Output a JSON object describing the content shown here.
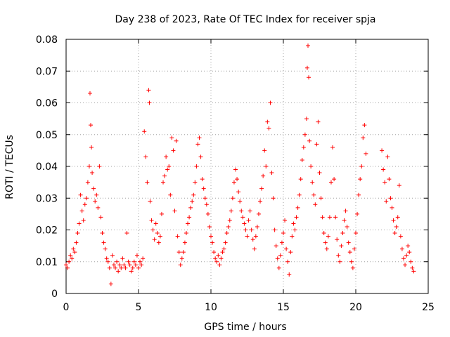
{
  "chart_data": {
    "type": "scatter",
    "title": "Day 238 of 2023, Rate Of TEC Index for receiver spja",
    "xlabel": "GPS time / hours",
    "ylabel": "ROTI / TECUs",
    "xlim": [
      0,
      25
    ],
    "ylim": [
      0,
      0.08
    ],
    "xticks": [
      0,
      5,
      10,
      15,
      20,
      25
    ],
    "yticks": [
      0,
      0.01,
      0.02,
      0.03,
      0.04,
      0.05,
      0.06,
      0.07,
      0.08
    ],
    "xtick_labels": [
      "0",
      "5",
      "10",
      "15",
      "20",
      "25"
    ],
    "ytick_labels": [
      "0",
      "0.01",
      "0.02",
      "0.03",
      "0.04",
      "0.05",
      "0.06",
      "0.07",
      "0.08"
    ],
    "grid": true,
    "marker": "+",
    "color": "#ff0000",
    "points": [
      [
        0.0,
        0.009
      ],
      [
        0.1,
        0.008
      ],
      [
        0.2,
        0.01
      ],
      [
        0.3,
        0.012
      ],
      [
        0.4,
        0.011
      ],
      [
        0.5,
        0.014
      ],
      [
        0.6,
        0.013
      ],
      [
        0.7,
        0.016
      ],
      [
        0.8,
        0.019
      ],
      [
        0.9,
        0.022
      ],
      [
        1.0,
        0.031
      ],
      [
        1.1,
        0.026
      ],
      [
        1.2,
        0.023
      ],
      [
        1.3,
        0.028
      ],
      [
        1.4,
        0.03
      ],
      [
        1.5,
        0.035
      ],
      [
        1.6,
        0.04
      ],
      [
        1.65,
        0.063
      ],
      [
        1.7,
        0.053
      ],
      [
        1.75,
        0.046
      ],
      [
        1.8,
        0.038
      ],
      [
        1.9,
        0.033
      ],
      [
        2.0,
        0.029
      ],
      [
        2.1,
        0.031
      ],
      [
        2.2,
        0.027
      ],
      [
        2.3,
        0.04
      ],
      [
        2.4,
        0.024
      ],
      [
        2.5,
        0.019
      ],
      [
        2.6,
        0.016
      ],
      [
        2.7,
        0.014
      ],
      [
        2.8,
        0.011
      ],
      [
        2.9,
        0.01
      ],
      [
        3.0,
        0.008
      ],
      [
        3.1,
        0.003
      ],
      [
        3.2,
        0.012
      ],
      [
        3.3,
        0.009
      ],
      [
        3.4,
        0.008
      ],
      [
        3.5,
        0.01
      ],
      [
        3.6,
        0.007
      ],
      [
        3.7,
        0.009
      ],
      [
        3.8,
        0.008
      ],
      [
        3.9,
        0.011
      ],
      [
        4.0,
        0.009
      ],
      [
        4.1,
        0.008
      ],
      [
        4.2,
        0.019
      ],
      [
        4.3,
        0.01
      ],
      [
        4.4,
        0.009
      ],
      [
        4.5,
        0.007
      ],
      [
        4.6,
        0.008
      ],
      [
        4.7,
        0.01
      ],
      [
        4.8,
        0.009
      ],
      [
        4.9,
        0.012
      ],
      [
        5.0,
        0.008
      ],
      [
        5.1,
        0.01
      ],
      [
        5.2,
        0.009
      ],
      [
        5.3,
        0.011
      ],
      [
        5.4,
        0.051
      ],
      [
        5.5,
        0.043
      ],
      [
        5.6,
        0.035
      ],
      [
        5.7,
        0.064
      ],
      [
        5.75,
        0.06
      ],
      [
        5.8,
        0.029
      ],
      [
        5.9,
        0.023
      ],
      [
        6.0,
        0.02
      ],
      [
        6.1,
        0.017
      ],
      [
        6.2,
        0.022
      ],
      [
        6.3,
        0.019
      ],
      [
        6.4,
        0.016
      ],
      [
        6.5,
        0.018
      ],
      [
        6.6,
        0.025
      ],
      [
        6.7,
        0.035
      ],
      [
        6.8,
        0.037
      ],
      [
        6.9,
        0.043
      ],
      [
        7.0,
        0.039
      ],
      [
        7.1,
        0.04
      ],
      [
        7.2,
        0.031
      ],
      [
        7.3,
        0.049
      ],
      [
        7.4,
        0.045
      ],
      [
        7.5,
        0.026
      ],
      [
        7.6,
        0.048
      ],
      [
        7.7,
        0.018
      ],
      [
        7.8,
        0.013
      ],
      [
        7.9,
        0.009
      ],
      [
        8.0,
        0.011
      ],
      [
        8.1,
        0.013
      ],
      [
        8.2,
        0.016
      ],
      [
        8.3,
        0.019
      ],
      [
        8.4,
        0.022
      ],
      [
        8.5,
        0.024
      ],
      [
        8.6,
        0.027
      ],
      [
        8.7,
        0.029
      ],
      [
        8.8,
        0.031
      ],
      [
        8.9,
        0.035
      ],
      [
        9.0,
        0.04
      ],
      [
        9.1,
        0.047
      ],
      [
        9.2,
        0.049
      ],
      [
        9.3,
        0.043
      ],
      [
        9.4,
        0.036
      ],
      [
        9.5,
        0.033
      ],
      [
        9.6,
        0.03
      ],
      [
        9.7,
        0.028
      ],
      [
        9.8,
        0.025
      ],
      [
        9.9,
        0.021
      ],
      [
        10.0,
        0.018
      ],
      [
        10.1,
        0.016
      ],
      [
        10.2,
        0.013
      ],
      [
        10.3,
        0.011
      ],
      [
        10.4,
        0.01
      ],
      [
        10.5,
        0.012
      ],
      [
        10.6,
        0.009
      ],
      [
        10.7,
        0.011
      ],
      [
        10.8,
        0.013
      ],
      [
        10.9,
        0.014
      ],
      [
        11.0,
        0.016
      ],
      [
        11.1,
        0.019
      ],
      [
        11.2,
        0.021
      ],
      [
        11.3,
        0.023
      ],
      [
        11.4,
        0.026
      ],
      [
        11.5,
        0.03
      ],
      [
        11.6,
        0.035
      ],
      [
        11.7,
        0.039
      ],
      [
        11.8,
        0.036
      ],
      [
        11.9,
        0.032
      ],
      [
        12.0,
        0.029
      ],
      [
        12.1,
        0.026
      ],
      [
        12.2,
        0.024
      ],
      [
        12.3,
        0.022
      ],
      [
        12.4,
        0.02
      ],
      [
        12.5,
        0.018
      ],
      [
        12.6,
        0.023
      ],
      [
        12.7,
        0.026
      ],
      [
        12.8,
        0.02
      ],
      [
        12.9,
        0.017
      ],
      [
        13.0,
        0.014
      ],
      [
        13.1,
        0.018
      ],
      [
        13.2,
        0.021
      ],
      [
        13.3,
        0.025
      ],
      [
        13.4,
        0.029
      ],
      [
        13.5,
        0.033
      ],
      [
        13.6,
        0.037
      ],
      [
        13.7,
        0.045
      ],
      [
        13.8,
        0.04
      ],
      [
        13.9,
        0.054
      ],
      [
        14.0,
        0.052
      ],
      [
        14.1,
        0.06
      ],
      [
        14.2,
        0.038
      ],
      [
        14.3,
        0.03
      ],
      [
        14.4,
        0.02
      ],
      [
        14.5,
        0.015
      ],
      [
        14.6,
        0.011
      ],
      [
        14.7,
        0.008
      ],
      [
        14.8,
        0.012
      ],
      [
        14.9,
        0.016
      ],
      [
        15.0,
        0.019
      ],
      [
        15.1,
        0.023
      ],
      [
        15.2,
        0.014
      ],
      [
        15.3,
        0.01
      ],
      [
        15.4,
        0.006
      ],
      [
        15.5,
        0.013
      ],
      [
        15.6,
        0.018
      ],
      [
        15.7,
        0.022
      ],
      [
        15.8,
        0.02
      ],
      [
        15.9,
        0.024
      ],
      [
        16.0,
        0.027
      ],
      [
        16.1,
        0.031
      ],
      [
        16.2,
        0.036
      ],
      [
        16.3,
        0.042
      ],
      [
        16.4,
        0.046
      ],
      [
        16.5,
        0.05
      ],
      [
        16.6,
        0.055
      ],
      [
        16.65,
        0.071
      ],
      [
        16.7,
        0.078
      ],
      [
        16.75,
        0.068
      ],
      [
        16.8,
        0.048
      ],
      [
        16.9,
        0.04
      ],
      [
        17.0,
        0.035
      ],
      [
        17.1,
        0.031
      ],
      [
        17.2,
        0.028
      ],
      [
        17.3,
        0.047
      ],
      [
        17.4,
        0.054
      ],
      [
        17.5,
        0.038
      ],
      [
        17.6,
        0.03
      ],
      [
        17.7,
        0.024
      ],
      [
        17.8,
        0.019
      ],
      [
        17.9,
        0.016
      ],
      [
        18.0,
        0.014
      ],
      [
        18.1,
        0.018
      ],
      [
        18.2,
        0.024
      ],
      [
        18.3,
        0.035
      ],
      [
        18.4,
        0.046
      ],
      [
        18.5,
        0.036
      ],
      [
        18.6,
        0.024
      ],
      [
        18.7,
        0.017
      ],
      [
        18.8,
        0.012
      ],
      [
        18.9,
        0.01
      ],
      [
        19.0,
        0.015
      ],
      [
        19.1,
        0.019
      ],
      [
        19.2,
        0.023
      ],
      [
        19.3,
        0.026
      ],
      [
        19.4,
        0.021
      ],
      [
        19.5,
        0.016
      ],
      [
        19.6,
        0.013
      ],
      [
        19.7,
        0.01
      ],
      [
        19.8,
        0.008
      ],
      [
        19.9,
        0.014
      ],
      [
        20.0,
        0.019
      ],
      [
        20.1,
        0.025
      ],
      [
        20.2,
        0.031
      ],
      [
        20.3,
        0.036
      ],
      [
        20.4,
        0.04
      ],
      [
        20.5,
        0.049
      ],
      [
        20.6,
        0.053
      ],
      [
        20.7,
        0.044
      ],
      [
        21.8,
        0.045
      ],
      [
        21.9,
        0.039
      ],
      [
        22.0,
        0.035
      ],
      [
        22.1,
        0.029
      ],
      [
        22.2,
        0.043
      ],
      [
        22.3,
        0.036
      ],
      [
        22.4,
        0.03
      ],
      [
        22.5,
        0.027
      ],
      [
        22.6,
        0.023
      ],
      [
        22.7,
        0.019
      ],
      [
        22.8,
        0.021
      ],
      [
        22.9,
        0.024
      ],
      [
        23.0,
        0.034
      ],
      [
        23.1,
        0.018
      ],
      [
        23.2,
        0.014
      ],
      [
        23.3,
        0.011
      ],
      [
        23.4,
        0.009
      ],
      [
        23.5,
        0.012
      ],
      [
        23.6,
        0.015
      ],
      [
        23.7,
        0.013
      ],
      [
        23.8,
        0.01
      ],
      [
        23.9,
        0.008
      ],
      [
        24.0,
        0.007
      ]
    ]
  }
}
